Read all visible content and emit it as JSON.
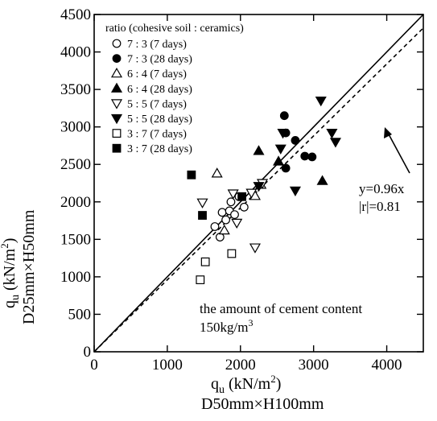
{
  "chart_data": {
    "type": "scatter",
    "x_ticks": [
      "0",
      "1000",
      "2000",
      "3000",
      "4000"
    ],
    "y_ticks": [
      "0",
      "500",
      "1000",
      "1500",
      "2000",
      "2500",
      "3000",
      "3500",
      "4000",
      "4500"
    ],
    "xlim": [
      0,
      4500
    ],
    "ylim": [
      0,
      4500
    ],
    "xlabel": {
      "main": "q",
      "sub": "u",
      "unit": " (kN/m",
      "sup": "2",
      "close": ")",
      "line2": "D50mm×H100mm"
    },
    "ylabel": {
      "main": "q",
      "sub": "u",
      "unit": " (kN/m",
      "sup": "2",
      "close": ")",
      "line2": "D25mm×H50mm"
    },
    "legend_title": "ratio (cohesive soil : ceramics)",
    "series": [
      {
        "name": "7 : 3 (7 days)",
        "marker": "circle-open",
        "points": [
          [
            1650,
            1670
          ],
          [
            1720,
            1530
          ],
          [
            1750,
            1860
          ],
          [
            1800,
            1760
          ],
          [
            1850,
            1880
          ],
          [
            1870,
            2000
          ],
          [
            1920,
            1830
          ],
          [
            1980,
            2070
          ],
          [
            2050,
            1930
          ]
        ]
      },
      {
        "name": "7 : 3 (28 days)",
        "marker": "circle-filled",
        "points": [
          [
            2600,
            3150
          ],
          [
            2620,
            2920
          ],
          [
            2620,
            2450
          ],
          [
            2750,
            2820
          ],
          [
            2880,
            2610
          ],
          [
            2980,
            2600
          ]
        ]
      },
      {
        "name": "6 : 4 (7 days)",
        "marker": "triangle-up-open",
        "points": [
          [
            1680,
            2380
          ],
          [
            1780,
            1620
          ],
          [
            2200,
            2080
          ],
          [
            2280,
            2230
          ]
        ]
      },
      {
        "name": "6 : 4 (28 days)",
        "marker": "triangle-up-filled",
        "points": [
          [
            2250,
            2680
          ],
          [
            2520,
            2540
          ],
          [
            3120,
            2280
          ]
        ]
      },
      {
        "name": "5 : 5 (7 days)",
        "marker": "triangle-down-open",
        "points": [
          [
            1480,
            1990
          ],
          [
            1900,
            2110
          ],
          [
            1950,
            1720
          ],
          [
            2150,
            2120
          ],
          [
            2200,
            1390
          ],
          [
            2300,
            2250
          ]
        ]
      },
      {
        "name": "5 : 5 (28 days)",
        "marker": "triangle-down-filled",
        "points": [
          [
            2250,
            2210
          ],
          [
            2550,
            2710
          ],
          [
            2580,
            2920
          ],
          [
            2750,
            2150
          ],
          [
            3100,
            3350
          ],
          [
            3250,
            2920
          ],
          [
            3300,
            2800
          ]
        ]
      },
      {
        "name": "3 : 7 (7 days)",
        "marker": "square-open",
        "points": [
          [
            1450,
            960
          ],
          [
            1520,
            1200
          ],
          [
            1880,
            1310
          ]
        ]
      },
      {
        "name": "3 : 7 (28 days)",
        "marker": "square-filled",
        "points": [
          [
            1330,
            2360
          ],
          [
            1480,
            1820
          ],
          [
            2020,
            2070
          ]
        ]
      }
    ],
    "lines": [
      {
        "name": "y=x",
        "slope": 1.0,
        "style": "solid"
      },
      {
        "name": "fit",
        "slope": 0.96,
        "style": "dashed"
      }
    ],
    "annotations": {
      "fit_eq": "y=0.96x",
      "fit_r": "|r|=0.81",
      "note_line1": "the amount of cement content",
      "note_line2_main": "150kg/m",
      "note_line2_sup": "3"
    },
    "grid": false,
    "legend_position": "top-left"
  }
}
